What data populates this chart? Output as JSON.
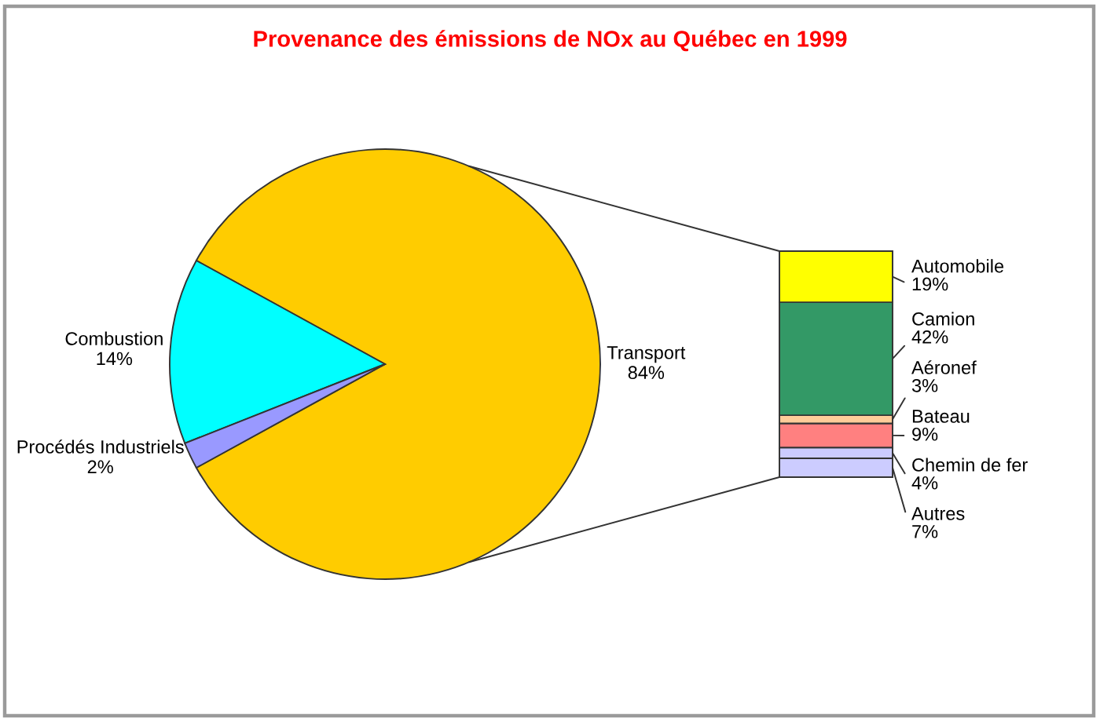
{
  "chart_data": [
    {
      "type": "pie",
      "title": "Provenance des émissions de NOx au Québec en 1999",
      "categories": [
        "Transport",
        "Combustion",
        "Procédés Industriels"
      ],
      "values": [
        84,
        14,
        2
      ],
      "value_labels": [
        "84%",
        "14%",
        "2%"
      ],
      "colors": [
        "#ffcc00",
        "#00ffff",
        "#9999ff"
      ]
    },
    {
      "type": "bar",
      "stacked": true,
      "categories": [
        null
      ],
      "series": [
        {
          "name": "Autres",
          "color": "#ccccff",
          "values": [
            7
          ],
          "value_labels": [
            "7%"
          ]
        },
        {
          "name": "Chemin de fer",
          "color": "#ccccff",
          "values": [
            4
          ],
          "value_labels": [
            "4%"
          ]
        },
        {
          "name": "Bateau",
          "color": "#ff8080",
          "values": [
            9
          ],
          "value_labels": [
            "9%"
          ]
        },
        {
          "name": "Aéronef",
          "color": "#ffcc99",
          "values": [
            3
          ],
          "value_labels": [
            "3%"
          ]
        },
        {
          "name": "Camion",
          "color": "#339966",
          "values": [
            42
          ],
          "value_labels": [
            "42%"
          ]
        },
        {
          "name": "Automobile",
          "color": "#ffff00",
          "values": [
            19
          ],
          "value_labels": [
            "19%"
          ]
        }
      ]
    }
  ]
}
